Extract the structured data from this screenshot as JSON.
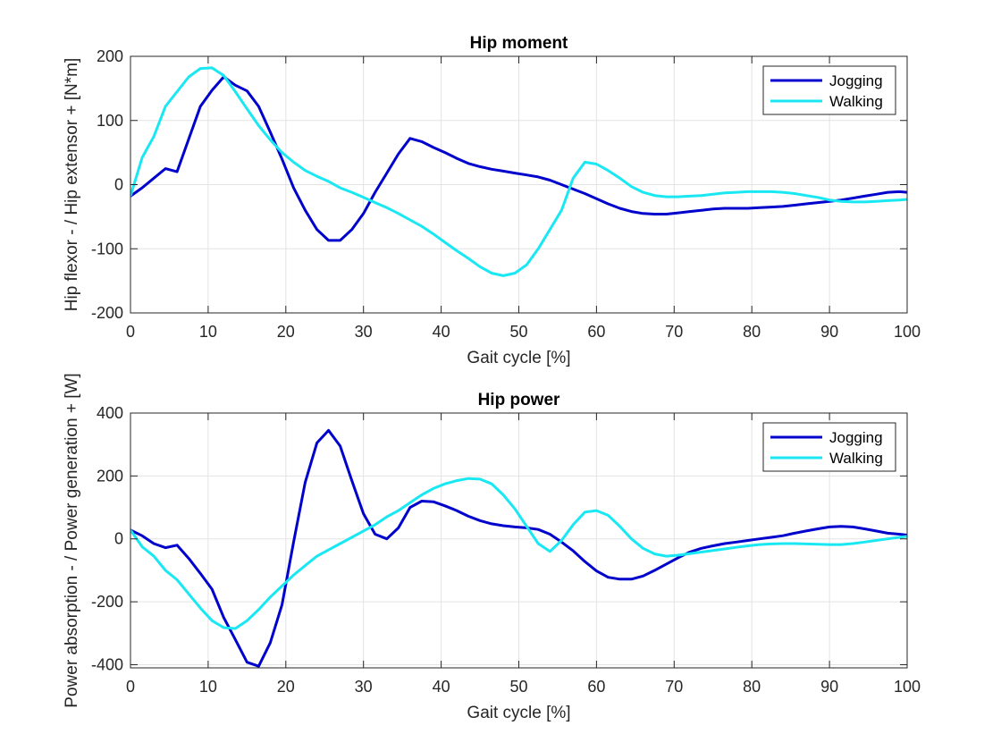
{
  "chart_data": [
    {
      "type": "line",
      "title": "Hip moment",
      "xlabel": "Gait cycle [%]",
      "ylabel": "Hip flexor - / Hip extensor + [N*m]",
      "xlim": [
        0,
        100
      ],
      "ylim": [
        -200,
        200
      ],
      "xticks": [
        0,
        10,
        20,
        30,
        40,
        50,
        60,
        70,
        80,
        90,
        100
      ],
      "yticks": [
        -200,
        -100,
        0,
        100,
        200
      ],
      "grid": true,
      "legend_position": "top-right",
      "series": [
        {
          "name": "Jogging",
          "color": "#0000cd",
          "x": [
            0,
            1.5,
            3,
            4.5,
            6,
            9,
            10.5,
            12,
            13.5,
            15,
            16.5,
            18,
            19.5,
            21,
            22.5,
            24,
            25.5,
            27,
            28.5,
            30,
            31.5,
            33,
            34.5,
            36,
            37.5,
            39,
            40.5,
            42,
            43.5,
            45,
            46.5,
            48,
            49.5,
            51,
            52.5,
            54,
            55.5,
            57,
            58.5,
            60,
            61.5,
            63,
            64.5,
            66,
            67.5,
            69,
            70.5,
            72,
            73.5,
            75,
            76.5,
            78,
            79.5,
            81,
            82.5,
            84,
            85.5,
            87,
            88.5,
            90,
            91.5,
            93,
            94.5,
            96,
            97.5,
            99,
            100
          ],
          "y": [
            -18,
            -5,
            10,
            25,
            20,
            122,
            147,
            168,
            155,
            146,
            122,
            82,
            40,
            -5,
            -40,
            -70,
            -87,
            -87,
            -70,
            -45,
            -12,
            18,
            48,
            72,
            67,
            58,
            50,
            41,
            33,
            28,
            24,
            21,
            18,
            15,
            12,
            7,
            0,
            -7,
            -14,
            -22,
            -30,
            -37,
            -42,
            -45,
            -46,
            -46,
            -44,
            -42,
            -40,
            -38,
            -37,
            -37,
            -37,
            -36,
            -35,
            -34,
            -32,
            -30,
            -28,
            -26,
            -24,
            -21,
            -18,
            -15,
            -12,
            -11,
            -12
          ]
        },
        {
          "name": "Walking",
          "color": "#19e8f3",
          "x": [
            0,
            1.5,
            3,
            4.5,
            6,
            7.5,
            9,
            10.5,
            12,
            13.5,
            15,
            16.5,
            18,
            19.5,
            21,
            22.5,
            24,
            25.5,
            27,
            28.5,
            30,
            31.5,
            33,
            34.5,
            36,
            37.5,
            39,
            40.5,
            42,
            43.5,
            45,
            46.5,
            48,
            49.5,
            51,
            52.5,
            54,
            55.5,
            57,
            58.5,
            60,
            61.5,
            63,
            64.5,
            66,
            67.5,
            69,
            70.5,
            72,
            73.5,
            75,
            76.5,
            78,
            79.5,
            81,
            82.5,
            84,
            85.5,
            87,
            88.5,
            90,
            91.5,
            93,
            94.5,
            96,
            97.5,
            99,
            100
          ],
          "y": [
            -18,
            42,
            75,
            122,
            145,
            168,
            181,
            182,
            170,
            145,
            118,
            92,
            70,
            50,
            35,
            22,
            13,
            5,
            -5,
            -12,
            -20,
            -28,
            -36,
            -45,
            -55,
            -65,
            -77,
            -90,
            -103,
            -115,
            -128,
            -138,
            -142,
            -138,
            -125,
            -100,
            -70,
            -40,
            10,
            35,
            32,
            22,
            10,
            -3,
            -12,
            -17,
            -19,
            -19,
            -18,
            -17,
            -15,
            -13,
            -12,
            -11,
            -11,
            -11,
            -12,
            -14,
            -17,
            -20,
            -24,
            -26,
            -27,
            -27,
            -26,
            -25,
            -24,
            -23
          ]
        }
      ]
    },
    {
      "type": "line",
      "title": "Hip power",
      "xlabel": "Gait cycle [%]",
      "ylabel": "Power absorption - / Power generation + [W]",
      "xlim": [
        0,
        100
      ],
      "ylim": [
        -410,
        400
      ],
      "xticks": [
        0,
        10,
        20,
        30,
        40,
        50,
        60,
        70,
        80,
        90,
        100
      ],
      "yticks": [
        -400,
        -200,
        0,
        200,
        400
      ],
      "grid": true,
      "legend_position": "top-right",
      "series": [
        {
          "name": "Jogging",
          "color": "#0000cd",
          "x": [
            0,
            1.5,
            3,
            4.5,
            6,
            7.5,
            9,
            10.5,
            12,
            13.5,
            15,
            16.5,
            18,
            19.5,
            21,
            22.5,
            24,
            25.5,
            27,
            28.5,
            30,
            31.5,
            33,
            34.5,
            36,
            37.5,
            39,
            40.5,
            42,
            43.5,
            45,
            46.5,
            48,
            49.5,
            51,
            52.5,
            54,
            55.5,
            57,
            58.5,
            60,
            61.5,
            63,
            64.5,
            66,
            67.5,
            69,
            70.5,
            72,
            73.5,
            75,
            76.5,
            78,
            79.5,
            81,
            82.5,
            84,
            85.5,
            87,
            88.5,
            90,
            91.5,
            93,
            94.5,
            96,
            97.5,
            99,
            100
          ],
          "y": [
            28,
            10,
            -15,
            -28,
            -20,
            -62,
            -110,
            -160,
            -250,
            -320,
            -392,
            -405,
            -330,
            -210,
            -10,
            180,
            305,
            345,
            295,
            185,
            80,
            15,
            0,
            35,
            100,
            120,
            118,
            105,
            90,
            72,
            58,
            48,
            42,
            38,
            35,
            30,
            15,
            -10,
            -38,
            -72,
            -102,
            -122,
            -128,
            -128,
            -118,
            -100,
            -80,
            -60,
            -42,
            -30,
            -22,
            -15,
            -10,
            -5,
            0,
            5,
            10,
            18,
            25,
            32,
            38,
            40,
            38,
            32,
            25,
            18,
            15,
            12
          ]
        },
        {
          "name": "Walking",
          "color": "#19e8f3",
          "x": [
            0,
            1.5,
            3,
            4.5,
            6,
            7.5,
            9,
            10.5,
            12,
            13.5,
            15,
            16.5,
            18,
            19.5,
            21,
            22.5,
            24,
            25.5,
            27,
            28.5,
            30,
            31.5,
            33,
            34.5,
            36,
            37.5,
            39,
            40.5,
            42,
            43.5,
            45,
            46.5,
            48,
            49.5,
            51,
            52.5,
            54,
            55.5,
            57,
            58.5,
            60,
            61.5,
            63,
            64.5,
            66,
            67.5,
            69,
            70.5,
            72,
            73.5,
            75,
            76.5,
            78,
            79.5,
            81,
            82.5,
            84,
            85.5,
            87,
            88.5,
            90,
            91.5,
            93,
            94.5,
            96,
            97.5,
            99,
            100
          ],
          "y": [
            28,
            -25,
            -55,
            -100,
            -130,
            -175,
            -220,
            -260,
            -282,
            -285,
            -260,
            -225,
            -185,
            -150,
            -115,
            -85,
            -55,
            -35,
            -15,
            5,
            25,
            45,
            70,
            90,
            115,
            140,
            160,
            175,
            185,
            192,
            190,
            175,
            140,
            95,
            40,
            -15,
            -40,
            -5,
            45,
            85,
            90,
            75,
            40,
            0,
            -30,
            -48,
            -55,
            -52,
            -47,
            -42,
            -37,
            -32,
            -27,
            -22,
            -18,
            -16,
            -15,
            -15,
            -16,
            -17,
            -18,
            -18,
            -15,
            -10,
            -5,
            0,
            5,
            8
          ]
        }
      ]
    }
  ]
}
